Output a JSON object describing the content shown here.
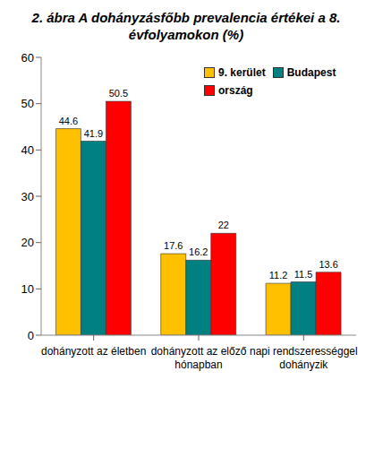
{
  "chart_data": {
    "type": "bar",
    "title": "2. ábra A dohányzásfőbb prevalencia értékei a 8. évfolyamokon (%)",
    "categories": [
      "dohányzott az életben",
      "dohányzott az előző hónapban",
      "napi rendszerességgel dohányzik"
    ],
    "series": [
      {
        "name": "9. kerület",
        "color": "#ffc000",
        "values": [
          44.6,
          17.6,
          11.2
        ]
      },
      {
        "name": "Budapest",
        "color": "#008080",
        "values": [
          41.9,
          16.2,
          11.5
        ]
      },
      {
        "name": "ország",
        "color": "#ff0000",
        "values": [
          50.5,
          22,
          13.6
        ]
      }
    ],
    "ylim": [
      0,
      60
    ],
    "yticks": [
      0,
      10,
      20,
      30,
      40,
      50,
      60
    ],
    "grid": false,
    "legend": "upper right",
    "data_labels": true
  }
}
